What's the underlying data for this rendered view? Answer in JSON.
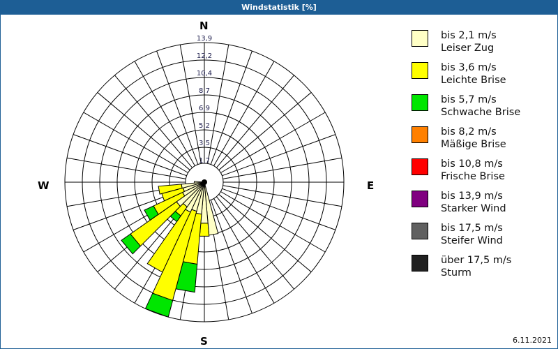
{
  "window": {
    "title": "Windstatistik [%]"
  },
  "footer": {
    "date": "6.11.2021"
  },
  "compass": {
    "n": "N",
    "e": "E",
    "s": "S",
    "w": "W"
  },
  "legend": [
    {
      "speed": "bis 2,1 m/s",
      "name": "Leiser Zug",
      "color": "#ffffc6"
    },
    {
      "speed": "bis 3,6 m/s",
      "name": "Leichte Brise",
      "color": "#ffff00"
    },
    {
      "speed": "bis 5,7 m/s",
      "name": "Schwache Brise",
      "color": "#00e600"
    },
    {
      "speed": "bis 8,2 m/s",
      "name": "Mäßige Brise",
      "color": "#ff8000"
    },
    {
      "speed": "bis 10,8 m/s",
      "name": "Frische Brise",
      "color": "#ff0000"
    },
    {
      "speed": "bis 13,9 m/s",
      "name": "Starker Wind",
      "color": "#800080"
    },
    {
      "speed": "bis 17,5 m/s",
      "name": "Steifer Wind",
      "color": "#606060"
    },
    {
      "speed": "über 17,5 m/s",
      "name": "Sturm",
      "color": "#202020"
    }
  ],
  "chart_data": {
    "type": "polar-stacked-bar",
    "title": "Windstatistik [%]",
    "radial_ticks": [
      "1,7",
      "3,5",
      "5,2",
      "6,9",
      "8,7",
      "10,4",
      "12,2",
      "13,9"
    ],
    "radial_max": 13.9,
    "sectors": 36,
    "sector_width_deg": 10,
    "direction_labels": [
      "N",
      "E",
      "S",
      "W"
    ],
    "series_names": [
      "bis 2,1 m/s",
      "bis 3,6 m/s",
      "bis 5,7 m/s",
      "bis 8,2 m/s",
      "bis 10,8 m/s",
      "bis 13,9 m/s",
      "bis 17,5 m/s",
      "über 17,5 m/s"
    ],
    "bars": [
      {
        "direction_deg": 170,
        "cumulative": [
          5.3
        ]
      },
      {
        "direction_deg": 180,
        "cumulative": [
          4.1,
          5.4
        ]
      },
      {
        "direction_deg": 190,
        "cumulative": [
          3.2,
          8.2,
          11.0
        ]
      },
      {
        "direction_deg": 200,
        "cumulative": [
          3.0,
          12.2,
          13.9
        ]
      },
      {
        "direction_deg": 210,
        "cumulative": [
          3.3,
          9.9
        ]
      },
      {
        "direction_deg": 220,
        "cumulative": [
          3.0,
          4.1,
          4.8
        ]
      },
      {
        "direction_deg": 230,
        "cumulative": [
          3.4,
          9.0,
          10.1
        ]
      },
      {
        "direction_deg": 240,
        "cumulative": [
          2.4,
          5.6,
          6.6
        ]
      },
      {
        "direction_deg": 250,
        "cumulative": [
          2.2,
          4.4
        ]
      },
      {
        "direction_deg": 260,
        "cumulative": [
          2.3,
          4.6
        ]
      },
      {
        "direction_deg": 270,
        "cumulative": [
          1.0
        ]
      }
    ]
  }
}
